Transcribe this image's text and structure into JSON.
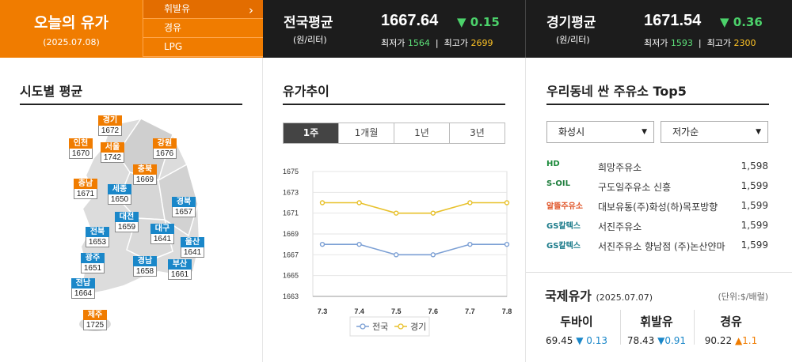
{
  "header": {
    "today_title": "오늘의 유가",
    "today_date": "(2025.07.08)",
    "fuel_tabs": [
      "휘발유",
      "경유",
      "LPG"
    ],
    "national": {
      "name": "전국평균",
      "unit": "(원/리터)",
      "price": "1667.64",
      "change": "▼ 0.15",
      "min_label": "최저가",
      "min": "1564",
      "max_label": "최고가",
      "max": "2699",
      "sep": "|"
    },
    "gyeonggi": {
      "name": "경기평균",
      "unit": "(원/리터)",
      "price": "1671.54",
      "change": "▼ 0.36",
      "min_label": "최저가",
      "min": "1593",
      "max_label": "최고가",
      "max": "2300",
      "sep": "|"
    }
  },
  "regional": {
    "title": "시도별 평균",
    "markers": [
      {
        "name": "경기",
        "value": "1672",
        "color": "orange"
      },
      {
        "name": "인천",
        "value": "1670",
        "color": "orange"
      },
      {
        "name": "서울",
        "value": "1742",
        "color": "orange"
      },
      {
        "name": "강원",
        "value": "1676",
        "color": "orange"
      },
      {
        "name": "충북",
        "value": "1669",
        "color": "orange"
      },
      {
        "name": "충남",
        "value": "1671",
        "color": "orange"
      },
      {
        "name": "세종",
        "value": "1650",
        "color": "blue"
      },
      {
        "name": "경북",
        "value": "1657",
        "color": "blue"
      },
      {
        "name": "대전",
        "value": "1659",
        "color": "blue"
      },
      {
        "name": "대구",
        "value": "1641",
        "color": "blue"
      },
      {
        "name": "전북",
        "value": "1653",
        "color": "blue"
      },
      {
        "name": "울산",
        "value": "1641",
        "color": "blue"
      },
      {
        "name": "광주",
        "value": "1651",
        "color": "blue"
      },
      {
        "name": "경남",
        "value": "1658",
        "color": "blue"
      },
      {
        "name": "부산",
        "value": "1661",
        "color": "blue"
      },
      {
        "name": "전남",
        "value": "1664",
        "color": "blue"
      },
      {
        "name": "제주",
        "value": "1725",
        "color": "orange"
      }
    ]
  },
  "trend": {
    "title": "유가추이",
    "tabs": [
      "1주",
      "1개월",
      "1년",
      "3년"
    ],
    "active_tab": "1주",
    "chart_data": {
      "type": "line",
      "categories": [
        "7.3",
        "7.4",
        "7.5",
        "7.6",
        "7.7",
        "7.8"
      ],
      "series": [
        {
          "name": "전국",
          "values": [
            1668,
            1668,
            1667,
            1667,
            1668,
            1668
          ],
          "color": "#7b9fd4"
        },
        {
          "name": "경기",
          "values": [
            1672,
            1672,
            1671,
            1671,
            1672,
            1672
          ],
          "color": "#e8c12b"
        }
      ],
      "yticks": [
        "1675",
        "1673",
        "1671",
        "1669",
        "1667",
        "1665",
        "1663"
      ],
      "ylim": [
        1663,
        1675
      ],
      "grid": true,
      "legend": "bottom"
    }
  },
  "stations": {
    "title": "우리동네 싼 주유소 Top5",
    "region_select": "화성시",
    "sort_select": "저가순",
    "list": [
      {
        "brand": "HD",
        "name": "희망주유소",
        "price": "1,598",
        "brand_color": "#1b8a3a"
      },
      {
        "brand": "S-OIL",
        "name": "구도일주유소 신흥",
        "price": "1,599",
        "brand_color": "#1e7d3c"
      },
      {
        "brand": "알뜰주유소",
        "name": "대보유통(주)화성(하)목포방향",
        "price": "1,599",
        "brand_color": "#e0562a"
      },
      {
        "brand": "GS칼텍스",
        "name": "서진주유소",
        "price": "1,599",
        "brand_color": "#1b7b8a"
      },
      {
        "brand": "GS칼텍스",
        "name": "서진주유소 향남점 (주)논산얀마",
        "price": "1,599",
        "brand_color": "#1b7b8a"
      }
    ]
  },
  "international": {
    "title": "국제유가",
    "date": "(2025.07.07)",
    "unit": "(단위:$/배럴)",
    "items": [
      {
        "name": "두바이",
        "value": "69.45",
        "change": "▼ 0.13",
        "dir": "down"
      },
      {
        "name": "휘발유",
        "value": "78.43",
        "change": "▼0.91",
        "dir": "down"
      },
      {
        "name": "경유",
        "value": "90.22",
        "change": "▲1.1",
        "dir": "up"
      }
    ]
  }
}
